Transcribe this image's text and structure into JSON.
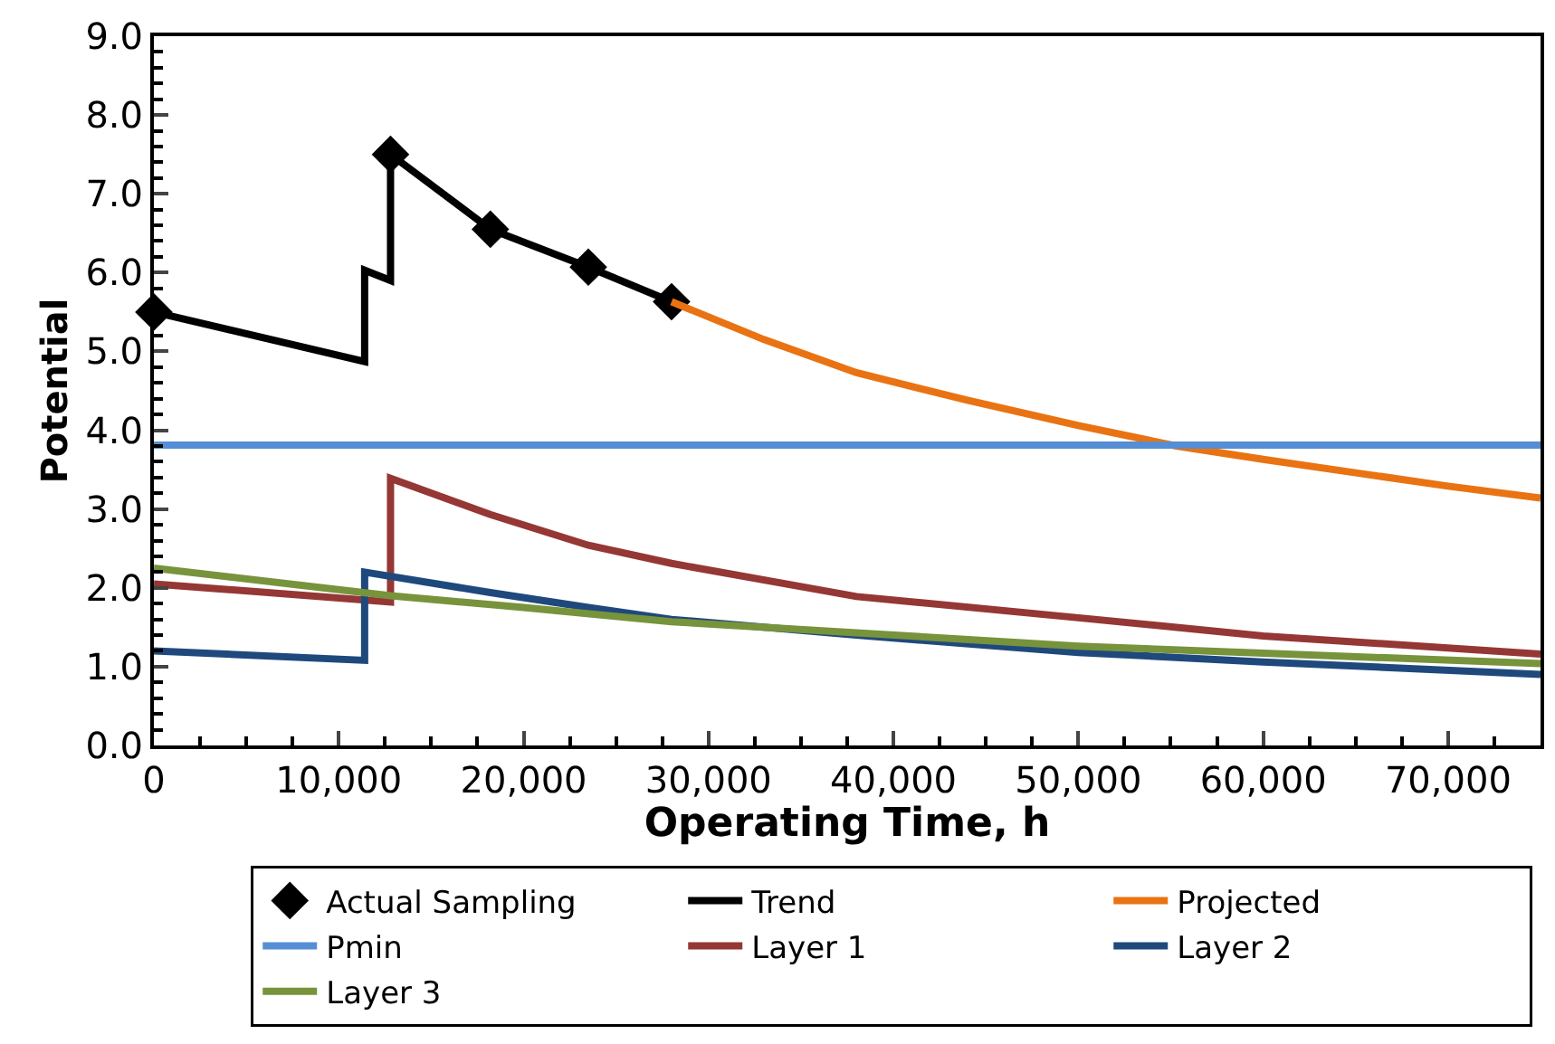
{
  "chart_data": {
    "type": "line",
    "xlabel": "Operating Time, h",
    "ylabel": "Potential",
    "xlim": [
      0,
      75000
    ],
    "xticks": [
      {
        "value": 0,
        "label": "0"
      },
      {
        "value": 10000,
        "label": "10,000"
      },
      {
        "value": 20000,
        "label": "20,000"
      },
      {
        "value": 30000,
        "label": "30,000"
      },
      {
        "value": 40000,
        "label": "40,000"
      },
      {
        "value": 50000,
        "label": "50,000"
      },
      {
        "value": 60000,
        "label": "60,000"
      },
      {
        "value": 70000,
        "label": "70,000"
      }
    ],
    "ylim": [
      0,
      9
    ],
    "yticks": [
      {
        "value": 0,
        "label": "0.0"
      },
      {
        "value": 1,
        "label": "1.0"
      },
      {
        "value": 2,
        "label": "2.0"
      },
      {
        "value": 3,
        "label": "3.0"
      },
      {
        "value": 4,
        "label": "4.0"
      },
      {
        "value": 5,
        "label": "5.0"
      },
      {
        "value": 6,
        "label": "6.0"
      },
      {
        "value": 7,
        "label": "7.0"
      },
      {
        "value": 8,
        "label": "8.0"
      },
      {
        "value": 9,
        "label": "9.0"
      }
    ],
    "legend": "bottom",
    "line_style": "solid",
    "series": [
      {
        "name": "Actual Sampling",
        "type": "scatter",
        "marker": "diamond",
        "color": "#000000",
        "x": [
          0,
          12800,
          18200,
          23500,
          28000
        ],
        "values": [
          5.5,
          7.5,
          6.55,
          6.07,
          5.63
        ]
      },
      {
        "name": "Trend",
        "color": "#000000",
        "marker": "none",
        "x": [
          0,
          11400,
          11400,
          12800,
          12800,
          18200,
          23500,
          28000
        ],
        "values": [
          5.5,
          4.87,
          6.03,
          5.9,
          7.5,
          6.55,
          6.07,
          5.63
        ]
      },
      {
        "name": "Projected",
        "color": "#e97312",
        "marker": "none",
        "x": [
          28000,
          33000,
          38000,
          44000,
          50000,
          55300,
          60000,
          65000,
          70000,
          75000
        ],
        "values": [
          5.63,
          5.15,
          4.73,
          4.38,
          4.06,
          3.8,
          3.63,
          3.46,
          3.29,
          3.14
        ]
      },
      {
        "name": "Pmin",
        "color": "#558ed5",
        "marker": "none",
        "x": [
          0,
          75000
        ],
        "values": [
          3.81,
          3.81
        ]
      },
      {
        "name": "Layer 1",
        "color": "#953735",
        "marker": "none",
        "x": [
          0,
          12800,
          12800,
          18200,
          23500,
          28000,
          38000,
          50000,
          60000,
          75000
        ],
        "values": [
          2.05,
          1.82,
          3.39,
          2.93,
          2.54,
          2.31,
          1.89,
          1.62,
          1.39,
          1.16
        ]
      },
      {
        "name": "Layer 2",
        "color": "#1f497d",
        "marker": "none",
        "x": [
          0,
          11400,
          11400,
          18200,
          23500,
          28000,
          38000,
          50000,
          60000,
          75000
        ],
        "values": [
          1.2,
          1.08,
          2.2,
          1.94,
          1.75,
          1.6,
          1.4,
          1.18,
          1.06,
          0.9
        ]
      },
      {
        "name": "Layer 3",
        "color": "#77933c",
        "marker": "none",
        "x": [
          0,
          12800,
          20000,
          28000,
          38000,
          50000,
          60000,
          75000
        ],
        "values": [
          2.25,
          1.9,
          1.75,
          1.57,
          1.43,
          1.26,
          1.17,
          1.04
        ]
      }
    ]
  }
}
